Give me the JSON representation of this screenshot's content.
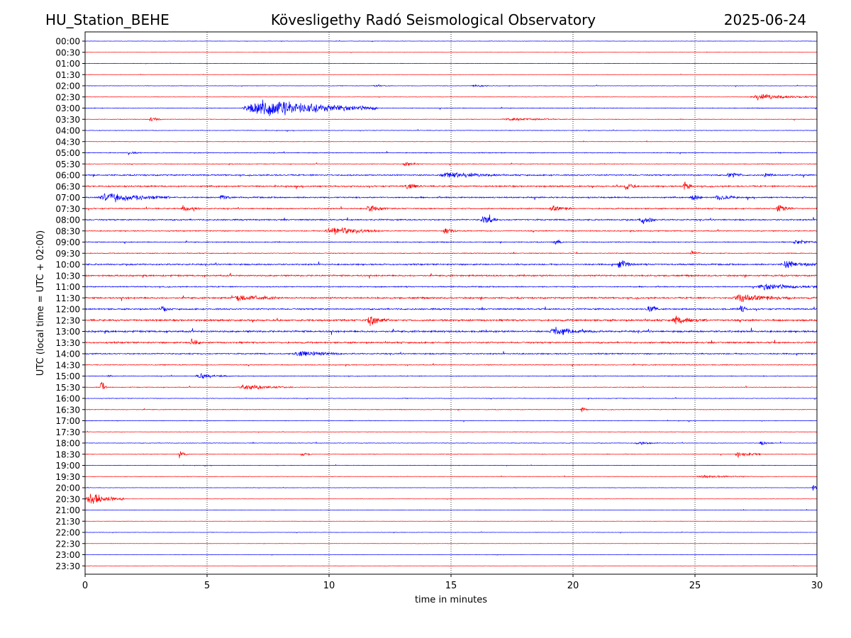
{
  "header": {
    "station": "HU_Station_BEHE",
    "observatory": "Kövesligethy Radó Seismological Observatory",
    "date": "2025-06-24"
  },
  "chart_data": {
    "type": "line",
    "title": "Kövesligethy Radó Seismological Observatory",
    "xlabel": "time in minutes",
    "ylabel": "UTC (local time = UTC + 02:00)",
    "xlim": [
      0,
      30
    ],
    "x_ticks": [
      0,
      5,
      10,
      15,
      20,
      25,
      30
    ],
    "grid": "vertical dotted lines at 5-minute intervals",
    "series_colors": [
      "#0000ff",
      "#ff0000"
    ],
    "row_labels": [
      "00:00",
      "00:30",
      "01:00",
      "01:30",
      "02:00",
      "02:30",
      "03:00",
      "03:30",
      "04:00",
      "04:30",
      "05:00",
      "05:30",
      "06:00",
      "06:30",
      "07:00",
      "07:30",
      "08:00",
      "08:30",
      "09:00",
      "09:30",
      "10:00",
      "10:30",
      "11:00",
      "11:30",
      "12:00",
      "12:30",
      "13:00",
      "13:30",
      "14:00",
      "14:30",
      "15:00",
      "15:30",
      "16:00",
      "16:30",
      "17:00",
      "17:30",
      "18:00",
      "18:30",
      "19:00",
      "19:30",
      "20:00",
      "20:30",
      "21:00",
      "21:30",
      "22:00",
      "22:30",
      "23:00",
      "23:30"
    ],
    "noise_level": [
      0.2,
      0.15,
      0.2,
      0.15,
      0.25,
      0.2,
      0.35,
      0.3,
      0.3,
      0.25,
      0.45,
      0.35,
      0.75,
      0.8,
      0.75,
      0.65,
      0.75,
      0.55,
      0.5,
      0.45,
      0.8,
      0.85,
      0.6,
      0.9,
      0.8,
      1.0,
      1.0,
      0.85,
      0.7,
      0.45,
      0.4,
      0.35,
      0.3,
      0.35,
      0.3,
      0.25,
      0.3,
      0.3,
      0.25,
      0.25,
      0.2,
      0.15,
      0.2,
      0.15,
      0.2,
      0.15,
      0.15,
      0.15
    ],
    "events": [
      {
        "row": "02:00",
        "start_min": 11.8,
        "end_min": 12.5,
        "amplitude": 2
      },
      {
        "row": "02:00",
        "start_min": 15.8,
        "end_min": 16.8,
        "amplitude": 2
      },
      {
        "row": "02:30",
        "start_min": 27.2,
        "end_min": 30.0,
        "amplitude": 5
      },
      {
        "row": "03:00",
        "start_min": 6.4,
        "end_min": 12.0,
        "amplitude": 15
      },
      {
        "row": "03:30",
        "start_min": 2.6,
        "end_min": 3.2,
        "amplitude": 4
      },
      {
        "row": "03:30",
        "start_min": 17.0,
        "end_min": 20.0,
        "amplitude": 2
      },
      {
        "row": "05:00",
        "start_min": 1.7,
        "end_min": 2.3,
        "amplitude": 3
      },
      {
        "row": "05:30",
        "start_min": 13.0,
        "end_min": 13.7,
        "amplitude": 4
      },
      {
        "row": "06:00",
        "start_min": 14.5,
        "end_min": 17.0,
        "amplitude": 5
      },
      {
        "row": "06:00",
        "start_min": 26.3,
        "end_min": 27.0,
        "amplitude": 5
      },
      {
        "row": "06:00",
        "start_min": 27.8,
        "end_min": 28.3,
        "amplitude": 5
      },
      {
        "row": "06:30",
        "start_min": 13.1,
        "end_min": 13.8,
        "amplitude": 6
      },
      {
        "row": "06:30",
        "start_min": 22.1,
        "end_min": 22.6,
        "amplitude": 9
      },
      {
        "row": "06:30",
        "start_min": 24.5,
        "end_min": 24.9,
        "amplitude": 9
      },
      {
        "row": "07:00",
        "start_min": 0.5,
        "end_min": 3.5,
        "amplitude": 8
      },
      {
        "row": "07:00",
        "start_min": 5.5,
        "end_min": 6.0,
        "amplitude": 5
      },
      {
        "row": "07:00",
        "start_min": 24.8,
        "end_min": 25.3,
        "amplitude": 9
      },
      {
        "row": "07:00",
        "start_min": 25.8,
        "end_min": 26.8,
        "amplitude": 5
      },
      {
        "row": "07:30",
        "start_min": 3.9,
        "end_min": 4.7,
        "amplitude": 6
      },
      {
        "row": "07:30",
        "start_min": 11.5,
        "end_min": 12.4,
        "amplitude": 6
      },
      {
        "row": "07:30",
        "start_min": 19.0,
        "end_min": 20.0,
        "amplitude": 5
      },
      {
        "row": "07:30",
        "start_min": 28.3,
        "end_min": 29.0,
        "amplitude": 8
      },
      {
        "row": "08:00",
        "start_min": 16.2,
        "end_min": 16.9,
        "amplitude": 9
      },
      {
        "row": "08:00",
        "start_min": 22.7,
        "end_min": 23.4,
        "amplitude": 9
      },
      {
        "row": "08:30",
        "start_min": 9.8,
        "end_min": 12.2,
        "amplitude": 7
      },
      {
        "row": "08:30",
        "start_min": 14.6,
        "end_min": 15.3,
        "amplitude": 5
      },
      {
        "row": "09:00",
        "start_min": 19.2,
        "end_min": 19.6,
        "amplitude": 6
      },
      {
        "row": "09:00",
        "start_min": 29.0,
        "end_min": 30.0,
        "amplitude": 4
      },
      {
        "row": "09:30",
        "start_min": 24.8,
        "end_min": 25.2,
        "amplitude": 6
      },
      {
        "row": "10:00",
        "start_min": 21.8,
        "end_min": 22.5,
        "amplitude": 8
      },
      {
        "row": "10:00",
        "start_min": 28.5,
        "end_min": 30.0,
        "amplitude": 6
      },
      {
        "row": "11:00",
        "start_min": 27.5,
        "end_min": 30.0,
        "amplitude": 5
      },
      {
        "row": "11:30",
        "start_min": 6.0,
        "end_min": 8.0,
        "amplitude": 5
      },
      {
        "row": "11:30",
        "start_min": 26.5,
        "end_min": 29.0,
        "amplitude": 6
      },
      {
        "row": "12:00",
        "start_min": 3.1,
        "end_min": 3.5,
        "amplitude": 6
      },
      {
        "row": "12:00",
        "start_min": 23.0,
        "end_min": 23.5,
        "amplitude": 8
      },
      {
        "row": "12:00",
        "start_min": 26.8,
        "end_min": 27.2,
        "amplitude": 8
      },
      {
        "row": "12:30",
        "start_min": 11.5,
        "end_min": 12.5,
        "amplitude": 8
      },
      {
        "row": "12:30",
        "start_min": 24.0,
        "end_min": 25.5,
        "amplitude": 6
      },
      {
        "row": "13:00",
        "start_min": 19.0,
        "end_min": 21.0,
        "amplitude": 6
      },
      {
        "row": "13:30",
        "start_min": 4.3,
        "end_min": 4.8,
        "amplitude": 8
      },
      {
        "row": "14:00",
        "start_min": 8.5,
        "end_min": 10.5,
        "amplitude": 5
      },
      {
        "row": "15:00",
        "start_min": 4.5,
        "end_min": 6.0,
        "amplitude": 4
      },
      {
        "row": "15:00",
        "start_min": 0.9,
        "end_min": 1.1,
        "amplitude": 4
      },
      {
        "row": "15:30",
        "start_min": 0.6,
        "end_min": 0.9,
        "amplitude": 12
      },
      {
        "row": "15:30",
        "start_min": 6.2,
        "end_min": 8.5,
        "amplitude": 4
      },
      {
        "row": "16:30",
        "start_min": 20.3,
        "end_min": 20.6,
        "amplitude": 6
      },
      {
        "row": "18:00",
        "start_min": 22.5,
        "end_min": 23.5,
        "amplitude": 3
      },
      {
        "row": "18:00",
        "start_min": 27.6,
        "end_min": 28.2,
        "amplitude": 4
      },
      {
        "row": "18:30",
        "start_min": 3.8,
        "end_min": 4.2,
        "amplitude": 7
      },
      {
        "row": "18:30",
        "start_min": 8.8,
        "end_min": 9.3,
        "amplitude": 4
      },
      {
        "row": "18:30",
        "start_min": 26.6,
        "end_min": 27.7,
        "amplitude": 5
      },
      {
        "row": "19:30",
        "start_min": 25.0,
        "end_min": 27.5,
        "amplitude": 2
      },
      {
        "row": "20:00",
        "start_min": 29.8,
        "end_min": 30.0,
        "amplitude": 12
      },
      {
        "row": "20:30",
        "start_min": 0.0,
        "end_min": 1.6,
        "amplitude": 12
      }
    ]
  }
}
